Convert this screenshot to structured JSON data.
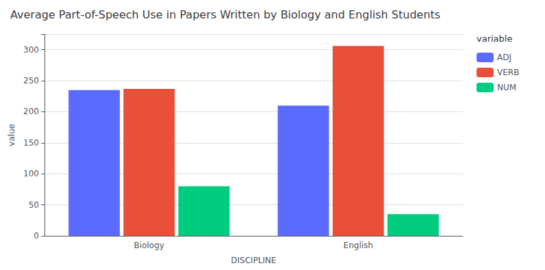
{
  "chart_data": {
    "type": "bar",
    "title": "Average Part-of-Speech Use in Papers Written by Biology and English Students",
    "xlabel": "DISCIPLINE",
    "ylabel": "value",
    "legend_title": "variable",
    "categories": [
      "Biology",
      "English"
    ],
    "series": [
      {
        "name": "ADJ",
        "color": "#5b6bff",
        "values": [
          235,
          210
        ]
      },
      {
        "name": "VERB",
        "color": "#e8503a",
        "values": [
          237,
          306
        ]
      },
      {
        "name": "NUM",
        "color": "#00cc80",
        "values": [
          80,
          35
        ]
      }
    ],
    "ylim": [
      0,
      325
    ],
    "yticks": [
      0,
      50,
      100,
      150,
      200,
      250,
      300
    ],
    "grid": true,
    "legend": "right"
  }
}
